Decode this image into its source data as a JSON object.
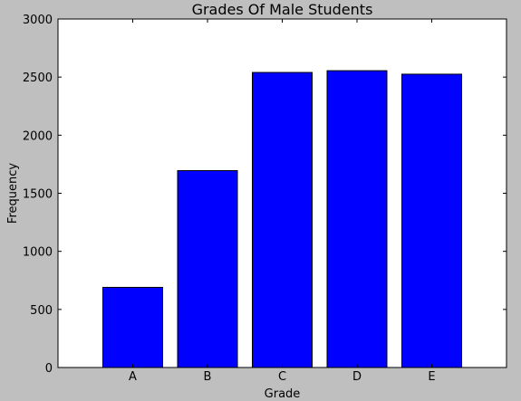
{
  "chart_data": {
    "type": "bar",
    "title": "Grades Of Male Students",
    "xlabel": "Grade",
    "ylabel": "Frequency",
    "categories": [
      "A",
      "B",
      "C",
      "D",
      "E"
    ],
    "values": [
      690,
      1695,
      2540,
      2555,
      2525
    ],
    "ylim": [
      0,
      3000
    ],
    "yticks": [
      0,
      500,
      1000,
      1500,
      2000,
      2500,
      3000
    ],
    "grid": false,
    "legend": "none",
    "bar_color": "#0000ff",
    "bar_edge_color": "#000000",
    "plot_background": "#ffffff",
    "figure_background": "#bfbfbf"
  }
}
